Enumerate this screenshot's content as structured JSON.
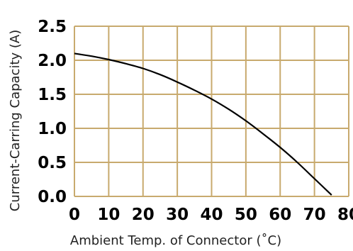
{
  "chart_data": {
    "type": "line",
    "xlabel": "Ambient Temp. of Connector (˚C)",
    "ylabel": "Current-Carring Capacity (A)",
    "xlim": [
      0,
      80
    ],
    "ylim": [
      0,
      2.5
    ],
    "x_ticks": [
      "0",
      "10",
      "20",
      "30",
      "40",
      "50",
      "60",
      "70",
      "80"
    ],
    "y_ticks": [
      "0.0",
      "0.5",
      "1.0",
      "1.5",
      "2.0",
      "2.5"
    ],
    "grid": true,
    "grid_color": "#c8aa6e",
    "line_color": "#000000",
    "series": [
      {
        "x": [
          0,
          5,
          10,
          15,
          20,
          25,
          30,
          35,
          40,
          45,
          50,
          55,
          60,
          65,
          70,
          75
        ],
        "values": [
          2.1,
          2.06,
          2.01,
          1.95,
          1.88,
          1.79,
          1.68,
          1.56,
          1.43,
          1.28,
          1.11,
          0.92,
          0.72,
          0.5,
          0.26,
          0.02
        ]
      }
    ]
  }
}
